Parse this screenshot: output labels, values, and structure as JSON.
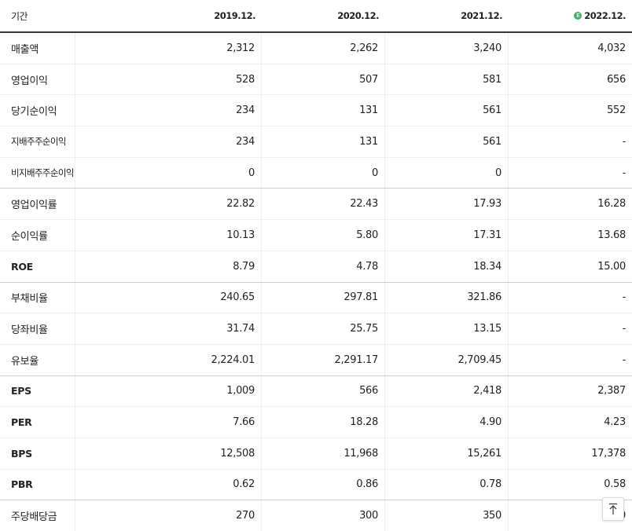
{
  "header": {
    "period_label": "기간",
    "columns": [
      "2019.12.",
      "2020.12.",
      "2021.12.",
      "2022.12."
    ],
    "estimate_icon": "E"
  },
  "rows": [
    {
      "label": "매출액",
      "values": [
        "2,312",
        "2,262",
        "3,240",
        "4,032"
      ]
    },
    {
      "label": "영업이익",
      "values": [
        "528",
        "507",
        "581",
        "656"
      ]
    },
    {
      "label": "당기순이익",
      "values": [
        "234",
        "131",
        "561",
        "552"
      ]
    },
    {
      "label": "지배주주순이익",
      "values": [
        "234",
        "131",
        "561",
        "-"
      ]
    },
    {
      "label": "비지배주주순이익",
      "values": [
        "0",
        "0",
        "0",
        "-"
      ]
    },
    {
      "label": "영업이익률",
      "values": [
        "22.82",
        "22.43",
        "17.93",
        "16.28"
      ]
    },
    {
      "label": "순이익률",
      "values": [
        "10.13",
        "5.80",
        "17.31",
        "13.68"
      ]
    },
    {
      "label": "ROE",
      "values": [
        "8.79",
        "4.78",
        "18.34",
        "15.00"
      ]
    },
    {
      "label": "부채비율",
      "values": [
        "240.65",
        "297.81",
        "321.86",
        "-"
      ]
    },
    {
      "label": "당좌비율",
      "values": [
        "31.74",
        "25.75",
        "13.15",
        "-"
      ]
    },
    {
      "label": "유보율",
      "values": [
        "2,224.01",
        "2,291.17",
        "2,709.45",
        "-"
      ]
    },
    {
      "label": "EPS",
      "values": [
        "1,009",
        "566",
        "2,418",
        "2,387"
      ]
    },
    {
      "label": "PER",
      "values": [
        "7.66",
        "18.28",
        "4.90",
        "4.23"
      ]
    },
    {
      "label": "BPS",
      "values": [
        "12,508",
        "11,968",
        "15,261",
        "17,378"
      ]
    },
    {
      "label": "PBR",
      "values": [
        "0.62",
        "0.86",
        "0.78",
        "0.58"
      ]
    },
    {
      "label": "주당배당금",
      "values": [
        "270",
        "300",
        "350",
        "0"
      ]
    }
  ],
  "scroll_top_button": {
    "icon": "arrow-up-to-top-icon"
  }
}
